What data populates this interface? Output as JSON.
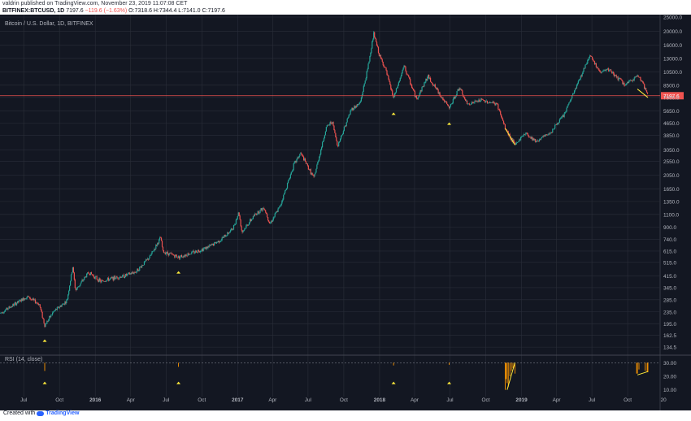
{
  "header": {
    "publisher_line": "valdrin published on TradingView.com, November 23, 2019 11:07:08 CET",
    "symbol": "BITFINEX:BTCUSD, 1D",
    "last": "7197.6",
    "change": "−119.6 (−1.63%)",
    "open": "O:7318.6",
    "high": "H:7344.4",
    "low": "L:7141.0",
    "close": "C:7197.6"
  },
  "footer": {
    "created_with": "Created with",
    "logo_text": "TradingView"
  },
  "colors": {
    "background": "#131722",
    "grid": "#2a2e39",
    "up": "#26a69a",
    "down": "#ef5350",
    "price_line": "#ef5350",
    "marker": "#ffeb3b",
    "rsi_line": "#ff9800",
    "divergence_line": "#ffeb3b",
    "axis_text": "#b2b5be"
  },
  "chart_data": [
    {
      "type": "candlestick",
      "title": "Bitcoin / U.S. Dollar, 1D, BITFINEX",
      "scale": "log",
      "ylim": [
        120,
        25000
      ],
      "x_ticks": [
        "Jul",
        "Oct",
        "2016",
        "Apr",
        "Jul",
        "Oct",
        "2017",
        "Apr",
        "Jul",
        "Oct",
        "2018",
        "Apr",
        "Jul",
        "Oct",
        "2019",
        "Apr",
        "Jul",
        "Oct",
        "20"
      ],
      "y_ticks": [
        134.5,
        162.5,
        195.0,
        235.0,
        285.0,
        345.0,
        415.0,
        515.0,
        615.0,
        740.0,
        900.0,
        1100.0,
        1350.0,
        1650.0,
        2050.0,
        2550.0,
        3050.0,
        3850.0,
        4650.0,
        5650.0,
        7000.0,
        8500.0,
        10500.0,
        13000.0,
        16000.0,
        20000.0,
        25000.0
      ],
      "y_tick_labels": [
        "134.5",
        "162.5",
        "195.0",
        "235.0",
        "285.0",
        "345.0",
        "415.0",
        "515.0",
        "615.0",
        "740.0",
        "900.0",
        "1100.0",
        "1350.0",
        "1650.0",
        "2050.0",
        "2550.0",
        "3050.0",
        "3850.0",
        "4650.0",
        "5650.0",
        "7000.0",
        "8500.0",
        "10500.0",
        "13000.0",
        "16000.0",
        "20000.0",
        "25000.0"
      ],
      "last_price": 7197.6,
      "last_price_label": "7197.6",
      "series": [
        {
          "x": [
            "2015-05-01",
            "2015-07-10",
            "2015-08-10",
            "2015-08-24",
            "2015-09-15",
            "2015-10-20",
            "2015-11-04",
            "2015-11-11",
            "2015-12-15",
            "2016-01-15",
            "2016-02-15",
            "2016-03-15",
            "2016-04-15",
            "2016-05-20",
            "2016-06-17",
            "2016-06-23",
            "2016-08-02",
            "2016-09-15",
            "2016-10-20",
            "2016-11-20",
            "2016-12-20",
            "2017-01-04",
            "2017-01-12",
            "2017-02-15",
            "2017-03-10",
            "2017-03-25",
            "2017-04-20",
            "2017-05-25",
            "2017-06-12",
            "2017-07-16",
            "2017-08-17",
            "2017-09-01",
            "2017-09-15",
            "2017-10-20",
            "2017-11-12",
            "2017-12-01",
            "2017-12-17",
            "2018-01-01",
            "2018-01-16",
            "2018-02-06",
            "2018-03-05",
            "2018-04-06",
            "2018-05-05",
            "2018-06-29",
            "2018-07-25",
            "2018-08-14",
            "2018-09-20",
            "2018-10-30",
            "2018-11-20",
            "2018-12-15",
            "2019-01-10",
            "2019-02-08",
            "2019-03-15",
            "2019-04-20",
            "2019-05-25",
            "2019-06-26",
            "2019-07-20",
            "2019-08-15",
            "2019-09-25",
            "2019-10-26",
            "2019-11-05",
            "2019-11-22"
          ],
          "y": [
            230,
            300,
            265,
            190,
            235,
            280,
            480,
            330,
            440,
            380,
            400,
            415,
            445,
            560,
            760,
            610,
            560,
            610,
            660,
            740,
            880,
            1140,
            830,
            1100,
            1230,
            950,
            1250,
            2400,
            2900,
            1950,
            4350,
            4800,
            3250,
            5800,
            6400,
            10900,
            19200,
            13500,
            11000,
            6900,
            11500,
            6800,
            9800,
            5900,
            8200,
            6300,
            6700,
            6300,
            4300,
            3300,
            4000,
            3500,
            4000,
            5300,
            8700,
            13800,
            10500,
            10800,
            8500,
            9900,
            9300,
            7197.6
          ]
        }
      ],
      "markers": [
        "2015-08-24",
        "2016-08-02",
        "2018-02-06",
        "2018-06-29"
      ],
      "divergence_lines": [
        {
          "x": [
            "2018-11-20",
            "2018-12-15"
          ],
          "y": [
            4300,
            3300
          ]
        },
        {
          "x": [
            "2019-10-26",
            "2019-11-22"
          ],
          "y": [
            8000,
            7000
          ]
        }
      ]
    },
    {
      "type": "line",
      "title": "RSI (14, close)",
      "ylim": [
        5,
        35
      ],
      "y_ticks": [
        10.0,
        20.0,
        30.0
      ],
      "y_tick_labels": [
        "10.00",
        "20.00",
        "30.00"
      ],
      "threshold": 30,
      "series": [
        {
          "x": [
            "2015-08-24",
            "2016-08-02",
            "2018-02-06",
            "2018-06-29",
            "2018-11-20",
            "2018-11-25",
            "2018-12-15",
            "2019-10-26",
            "2019-11-22"
          ],
          "y": [
            24,
            27,
            28,
            28.5,
            10,
            15,
            22,
            22,
            23
          ]
        }
      ],
      "markers": [
        "2015-08-24",
        "2016-08-02",
        "2018-02-06",
        "2018-06-29"
      ],
      "divergence_lines": [
        {
          "x": [
            "2018-11-25",
            "2018-12-15"
          ],
          "y": [
            10,
            30
          ]
        },
        {
          "x": [
            "2019-10-26",
            "2019-11-22"
          ],
          "y": [
            21,
            23.5
          ]
        }
      ]
    }
  ]
}
